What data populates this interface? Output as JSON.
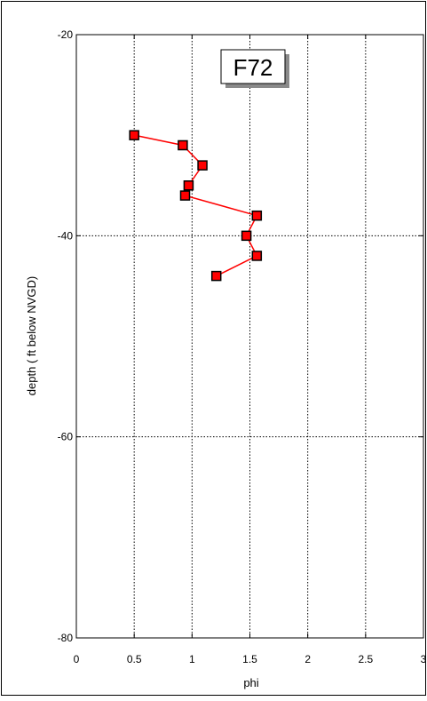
{
  "chart_data": {
    "type": "line",
    "title": "F72",
    "xlabel": "phi",
    "ylabel": "depth ( ft below NVGD)",
    "xlim": [
      0,
      3
    ],
    "ylim": [
      -80,
      -20
    ],
    "xticks": [
      0,
      0.5,
      1,
      1.5,
      2,
      2.5,
      3
    ],
    "xtick_labels": [
      "0",
      "0.5",
      "1",
      "1.5",
      "2",
      "2.5",
      "3"
    ],
    "yticks": [
      -80,
      -60,
      -40,
      -20
    ],
    "ytick_labels": [
      "-80",
      "-60",
      "-40",
      "-20"
    ],
    "grid": true,
    "series": [
      {
        "color": "#ff0000",
        "marker": "square",
        "points": [
          {
            "x": 0.5,
            "y": -30
          },
          {
            "x": 0.92,
            "y": -31
          },
          {
            "x": 1.09,
            "y": -33
          },
          {
            "x": 0.97,
            "y": -35
          },
          {
            "x": 0.94,
            "y": -36
          },
          {
            "x": 1.56,
            "y": -38
          },
          {
            "x": 1.47,
            "y": -40
          },
          {
            "x": 1.56,
            "y": -42
          },
          {
            "x": 1.21,
            "y": -44
          }
        ]
      }
    ]
  }
}
